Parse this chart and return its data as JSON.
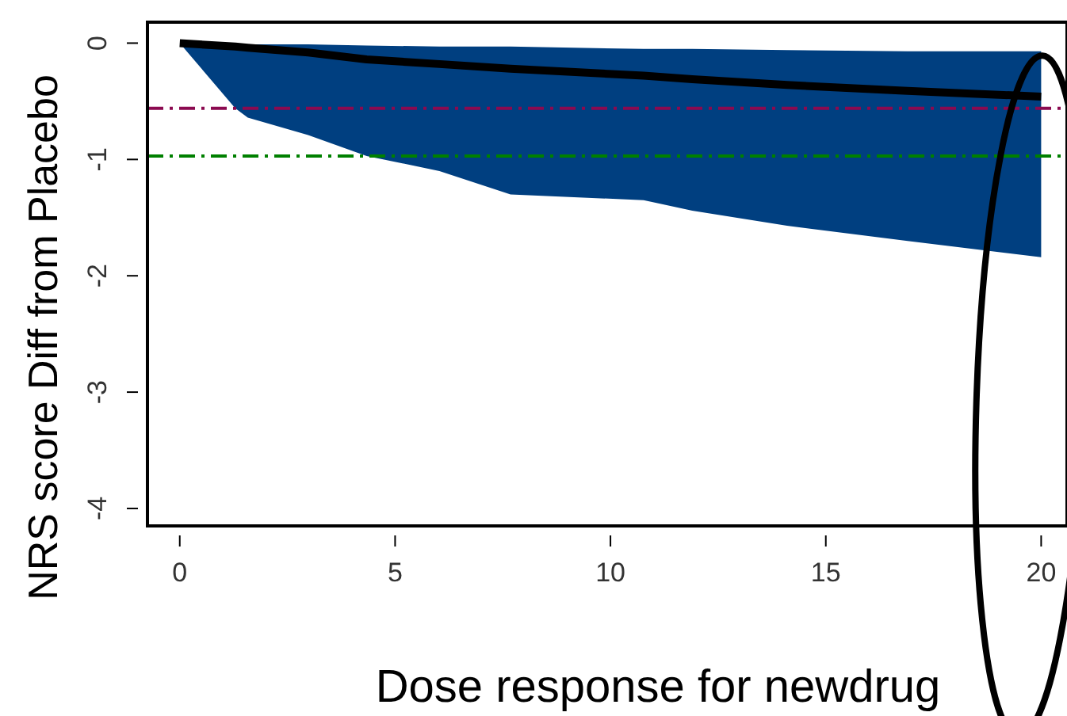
{
  "chart_data": {
    "type": "line",
    "xlabel": "Dose response for newdrug",
    "ylabel": "NRS score Diff from Placebo",
    "xlim": [
      -0.75,
      20.6
    ],
    "ylim": [
      -4.15,
      0.18
    ],
    "xticks": [
      0,
      5,
      10,
      15,
      20
    ],
    "yticks": [
      0,
      -1,
      -2,
      -3,
      -4
    ],
    "series": [
      {
        "color": "#000000",
        "x": [
          0,
          1.29,
          1.58,
          2.98,
          4.34,
          6.03,
          7.68,
          10.77,
          11.9,
          14.1,
          16.9,
          20
        ],
        "values": [
          0,
          -0.03,
          -0.04,
          -0.08,
          -0.14,
          -0.18,
          -0.22,
          -0.28,
          -0.31,
          -0.36,
          -0.41,
          -0.46
        ],
        "lower": [
          0,
          -0.56,
          -0.64,
          -0.79,
          -0.97,
          -1.1,
          -1.3,
          -1.35,
          -1.44,
          -1.57,
          -1.7,
          -1.84
        ],
        "upper": [
          0,
          -0.01,
          -0.01,
          -0.01,
          -0.02,
          -0.03,
          -0.03,
          -0.05,
          -0.05,
          -0.06,
          -0.07,
          -0.07
        ]
      }
    ],
    "ref_lines": [
      {
        "axis": "y",
        "value": -0.56,
        "color": "#8b0a50",
        "line_style": "dashed"
      },
      {
        "axis": "y",
        "value": -0.97,
        "color": "#008000",
        "line_style": "dashed"
      }
    ],
    "line_style": "solid",
    "marker": "none"
  }
}
